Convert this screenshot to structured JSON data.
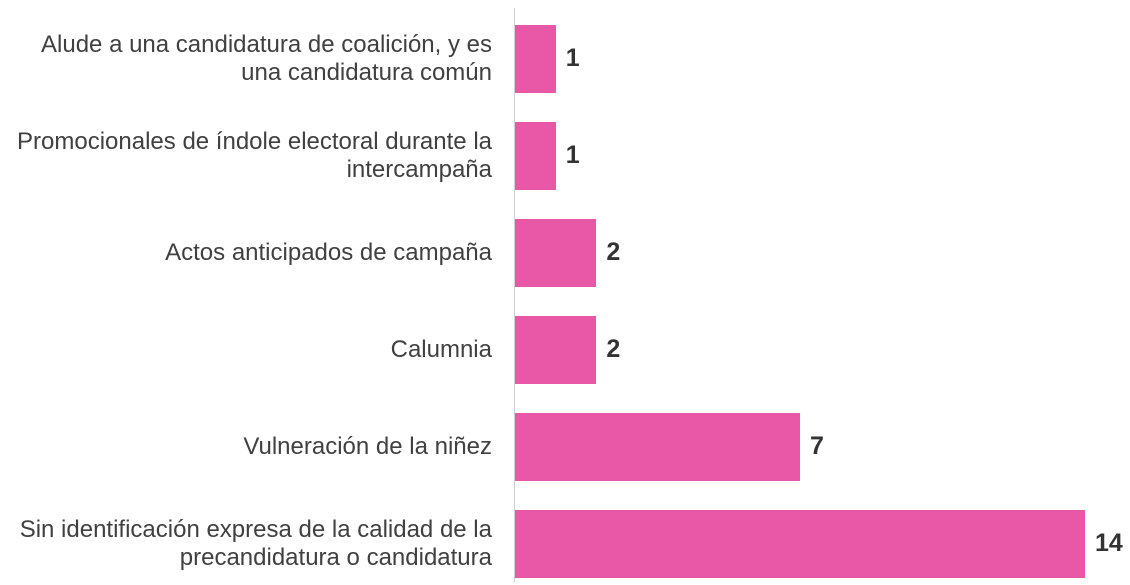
{
  "chart_data": {
    "type": "bar",
    "orientation": "horizontal",
    "categories": [
      "Alude a una candidatura de coalición, y es una candidatura común",
      "Promocionales de índole electoral durante la intercampaña",
      "Actos anticipados de campaña",
      "Calumnia",
      "Vulneración de la niñez",
      "Sin identificación expresa de la calidad de la precandidatura o candidatura"
    ],
    "values": [
      1,
      1,
      2,
      2,
      7,
      14
    ],
    "color": "#e858a6",
    "xlim": [
      0,
      14
    ]
  }
}
